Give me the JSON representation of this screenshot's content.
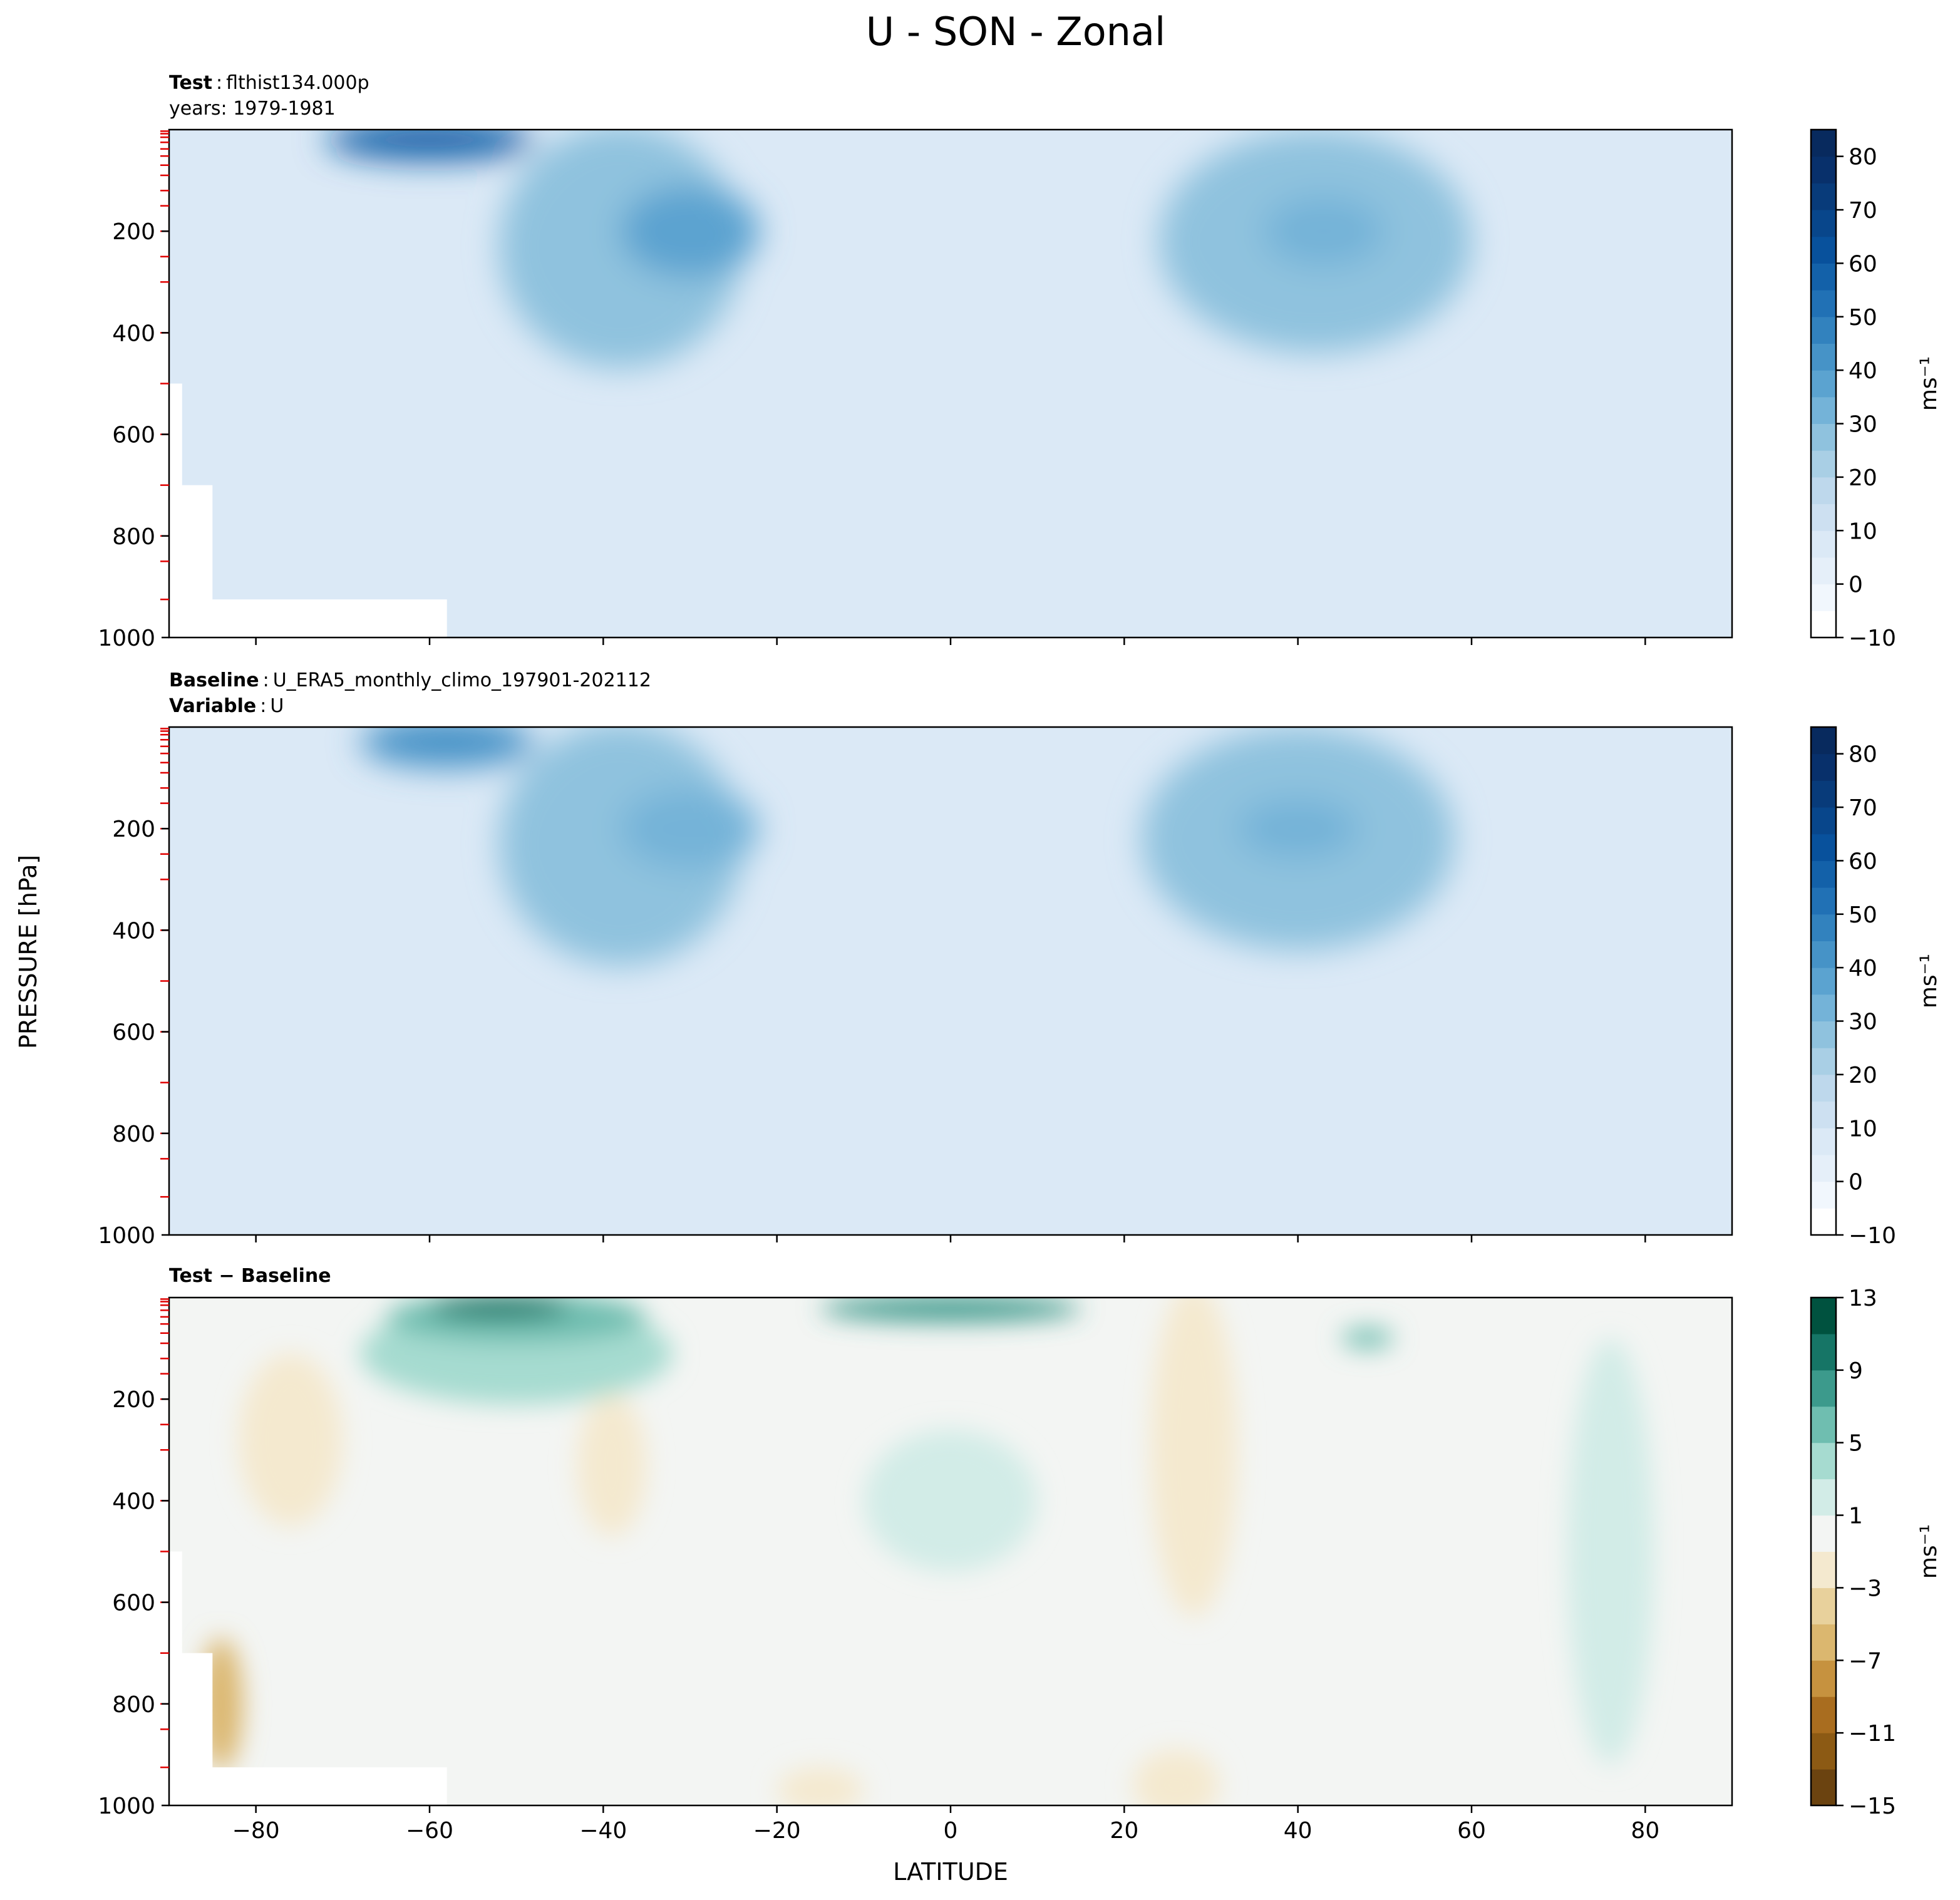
{
  "figure": {
    "title": "U - SON - Zonal",
    "shared_xlabel": "LATITUDE",
    "shared_ylabel": "PRESSURE [hPa]"
  },
  "chart_data": [
    {
      "type": "heatmap",
      "panel": "test",
      "label_bold": "Test",
      "label_sep": ":",
      "label_text": "flthist134.000p",
      "label_line2": "years: 1979-1981",
      "xlim": [
        -90,
        90
      ],
      "ylim": [
        1000,
        0
      ],
      "x_ticks": [
        -80,
        -60,
        -40,
        -20,
        0,
        20,
        40,
        60,
        80
      ],
      "y_ticks": [
        200,
        400,
        600,
        800,
        1000
      ],
      "show_x_ticklabels": false,
      "colorbar": {
        "label": "ms⁻¹",
        "levels": [
          -10,
          -5,
          0,
          5,
          10,
          15,
          20,
          25,
          30,
          35,
          40,
          45,
          50,
          55,
          60,
          65,
          70,
          75,
          80,
          85
        ],
        "ticks": [
          -10,
          0,
          10,
          20,
          30,
          40,
          50,
          60,
          70,
          80
        ],
        "tick_labels": [
          "−10",
          "0",
          "10",
          "20",
          "30",
          "40",
          "50",
          "60",
          "70",
          "80"
        ],
        "colors": [
          "#ffffff",
          "#f1f7fd",
          "#e5eff9",
          "#dbe9f6",
          "#cde0f1",
          "#bed8ec",
          "#a9cfe5",
          "#8fc2de",
          "#74b3d8",
          "#5ba3d0",
          "#4693c7",
          "#3282be",
          "#2171b5",
          "#1361a9",
          "#08519c",
          "#08468b",
          "#083b7a",
          "#08306b",
          "#082a5e"
        ]
      },
      "blobs": [
        {
          "lat": -38,
          "p": 230,
          "rx": 14,
          "ry": 240,
          "value": 25
        },
        {
          "lat": -30,
          "p": 200,
          "rx": 8,
          "ry": 90,
          "value": 35
        },
        {
          "lat": -60,
          "p": 20,
          "rx": 12,
          "ry": 40,
          "value": 55
        },
        {
          "lat": 42,
          "p": 220,
          "rx": 18,
          "ry": 220,
          "value": 25
        },
        {
          "lat": 43,
          "p": 200,
          "rx": 7,
          "ry": 70,
          "value": 33
        }
      ],
      "masked_regions": [
        {
          "lat0": -90,
          "lat1": -58,
          "p0": 925,
          "p1": 1000
        },
        {
          "lat0": -90,
          "lat1": -85,
          "p0": 700,
          "p1": 1000
        },
        {
          "lat0": -90,
          "lat1": -88.5,
          "p0": 500,
          "p1": 1000
        }
      ]
    },
    {
      "type": "heatmap",
      "panel": "baseline",
      "label_bold": "Baseline",
      "label_sep": ":",
      "label_text": "U_ERA5_monthly_climo_197901-202112",
      "label2_bold": "Variable",
      "label2_sep": ":",
      "label2_text": "U",
      "xlim": [
        -90,
        90
      ],
      "ylim": [
        1000,
        0
      ],
      "x_ticks": [
        -80,
        -60,
        -40,
        -20,
        0,
        20,
        40,
        60,
        80
      ],
      "y_ticks": [
        200,
        400,
        600,
        800,
        1000
      ],
      "show_x_ticklabels": false,
      "colorbar": {
        "label": "ms⁻¹",
        "levels": [
          -10,
          -5,
          0,
          5,
          10,
          15,
          20,
          25,
          30,
          35,
          40,
          45,
          50,
          55,
          60,
          65,
          70,
          75,
          80,
          85
        ],
        "ticks": [
          -10,
          0,
          10,
          20,
          30,
          40,
          50,
          60,
          70,
          80
        ],
        "tick_labels": [
          "−10",
          "0",
          "10",
          "20",
          "30",
          "40",
          "50",
          "60",
          "70",
          "80"
        ],
        "colors": [
          "#ffffff",
          "#f1f7fd",
          "#e5eff9",
          "#dbe9f6",
          "#cde0f1",
          "#bed8ec",
          "#a9cfe5",
          "#8fc2de",
          "#74b3d8",
          "#5ba3d0",
          "#4693c7",
          "#3282be",
          "#2171b5",
          "#1361a9",
          "#08519c",
          "#08468b",
          "#083b7a",
          "#08306b",
          "#082a5e"
        ]
      },
      "blobs": [
        {
          "lat": -38,
          "p": 230,
          "rx": 14,
          "ry": 240,
          "value": 25
        },
        {
          "lat": -30,
          "p": 200,
          "rx": 8,
          "ry": 80,
          "value": 33
        },
        {
          "lat": -58,
          "p": 30,
          "rx": 10,
          "ry": 50,
          "value": 40
        },
        {
          "lat": 40,
          "p": 220,
          "rx": 18,
          "ry": 220,
          "value": 25
        },
        {
          "lat": 40,
          "p": 200,
          "rx": 7,
          "ry": 60,
          "value": 32
        }
      ],
      "masked_regions": []
    },
    {
      "type": "heatmap",
      "panel": "difference",
      "label_bold": "Test − Baseline",
      "xlim": [
        -90,
        90
      ],
      "ylim": [
        1000,
        0
      ],
      "x_ticks": [
        -80,
        -60,
        -40,
        -20,
        0,
        20,
        40,
        60,
        80
      ],
      "x_tick_labels": [
        "−80",
        "−60",
        "−40",
        "−20",
        "0",
        "20",
        "40",
        "60",
        "80"
      ],
      "y_ticks": [
        200,
        400,
        600,
        800,
        1000
      ],
      "show_x_ticklabels": true,
      "colorbar": {
        "label": "ms⁻¹",
        "levels": [
          -15,
          -13,
          -11,
          -9,
          -7,
          -5,
          -3,
          -1,
          1,
          3,
          5,
          7,
          9,
          11,
          13
        ],
        "ticks": [
          -15,
          -11,
          -7,
          -3,
          1,
          5,
          9,
          13
        ],
        "tick_labels": [
          "−15",
          "−11",
          "−7",
          "−3",
          "1",
          "5",
          "9",
          "13"
        ],
        "colors": [
          "#6b4310",
          "#8c5a14",
          "#a96d1f",
          "#c6923f",
          "#dbb76f",
          "#e8d19c",
          "#f4e9cf",
          "#f3f5f3",
          "#d2ece7",
          "#a6dbd0",
          "#6fbeb0",
          "#3c9a8c",
          "#167566",
          "#00523f"
        ]
      },
      "blobs": [
        {
          "lat": -76,
          "p": 280,
          "rx": 6,
          "ry": 170,
          "value": -2
        },
        {
          "lat": -39,
          "p": 330,
          "rx": 4,
          "ry": 140,
          "value": -2
        },
        {
          "lat": 0,
          "p": 400,
          "rx": 10,
          "ry": 140,
          "value": 2
        },
        {
          "lat": 28,
          "p": 300,
          "rx": 5,
          "ry": 330,
          "value": -2
        },
        {
          "lat": 76,
          "p": 500,
          "rx": 5,
          "ry": 420,
          "value": 2
        },
        {
          "lat": -50,
          "p": 110,
          "rx": 18,
          "ry": 100,
          "value": 3
        },
        {
          "lat": -50,
          "p": 40,
          "rx": 15,
          "ry": 50,
          "value": 6
        },
        {
          "lat": -52,
          "p": 20,
          "rx": 8,
          "ry": 22,
          "value": 10
        },
        {
          "lat": 0,
          "p": 22,
          "rx": 15,
          "ry": 25,
          "value": 8
        },
        {
          "lat": 48,
          "p": 80,
          "rx": 3,
          "ry": 20,
          "value": 5
        },
        {
          "lat": -84,
          "p": 800,
          "rx": 2.5,
          "ry": 130,
          "value": -6
        },
        {
          "lat": 26,
          "p": 960,
          "rx": 5,
          "ry": 70,
          "value": -2
        },
        {
          "lat": -15,
          "p": 970,
          "rx": 5,
          "ry": 45,
          "value": -2
        }
      ],
      "masked_regions": [
        {
          "lat0": -90,
          "lat1": -58,
          "p0": 925,
          "p1": 1000
        },
        {
          "lat0": -90,
          "lat1": -85,
          "p0": 700,
          "p1": 1000
        },
        {
          "lat0": -90,
          "lat1": -88.5,
          "p0": 500,
          "p1": 1000
        }
      ]
    }
  ]
}
